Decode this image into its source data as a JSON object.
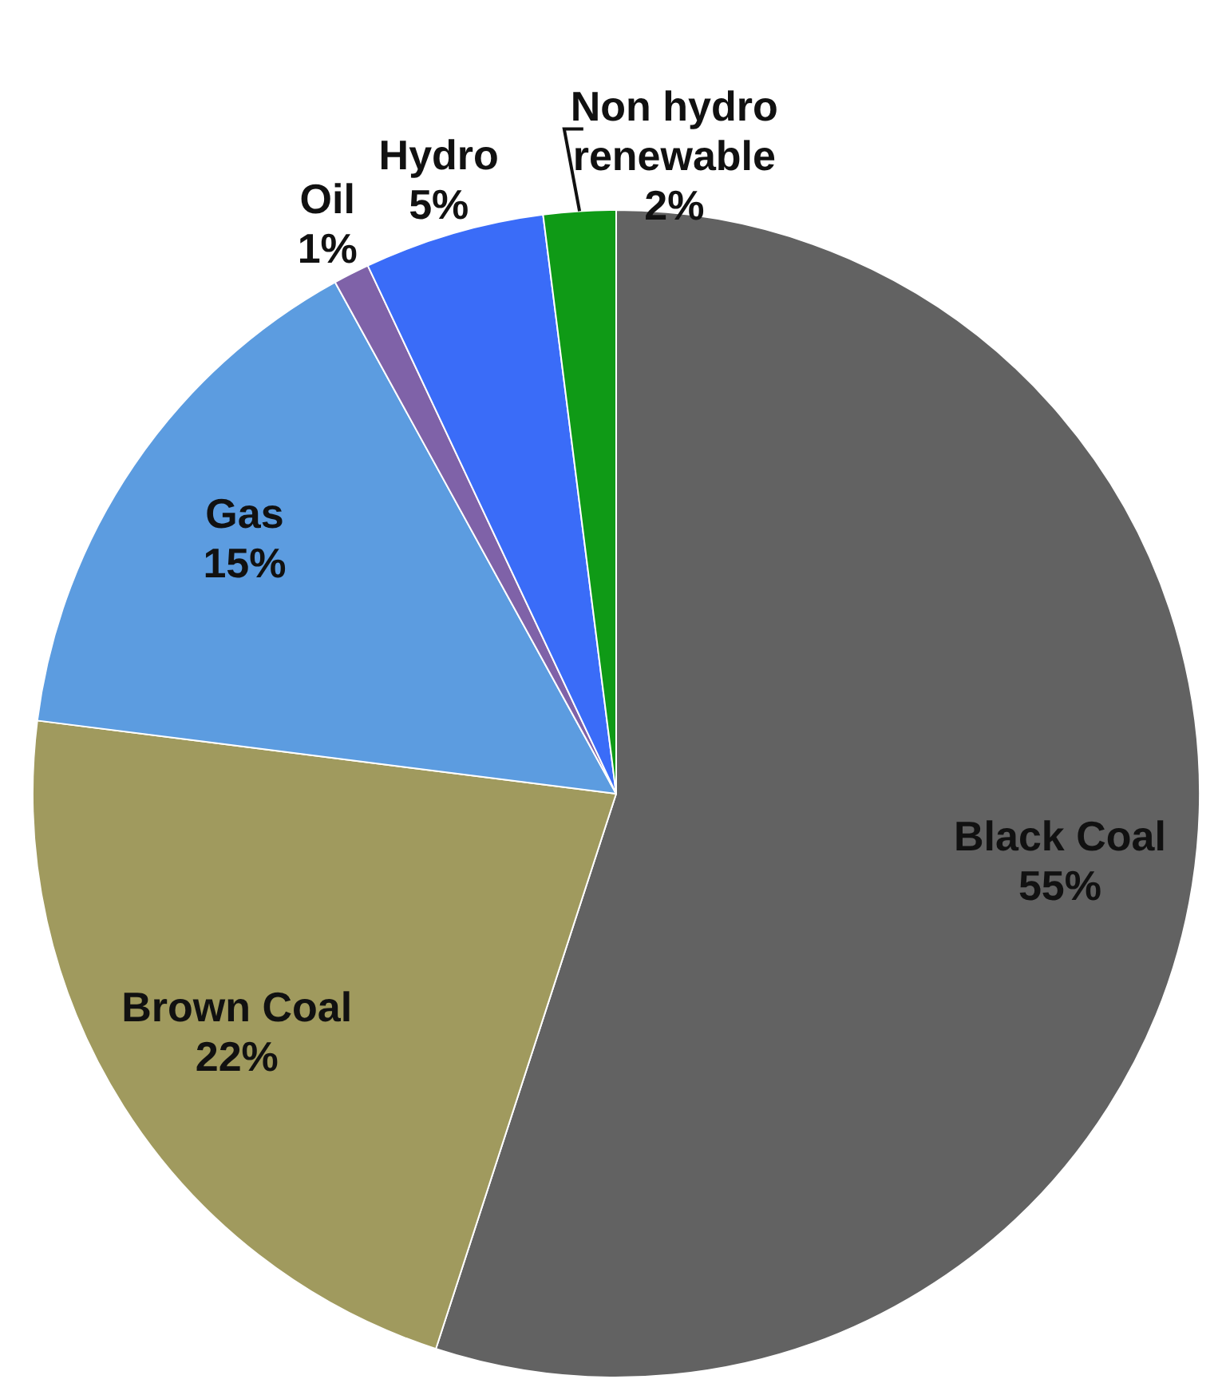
{
  "chart_data": {
    "type": "pie",
    "categories": [
      "Black Coal",
      "Brown Coal",
      "Gas",
      "Oil",
      "Hydro",
      "Non hydro renewable"
    ],
    "values": [
      55,
      22,
      15,
      1,
      5,
      2
    ],
    "value_labels": [
      "55%",
      "22%",
      "15%",
      "1%",
      "5%",
      "2%"
    ],
    "colors": [
      "#626262",
      "#a09a5e",
      "#5c9ce0",
      "#7f62a8",
      "#3a6cf8",
      "#0f9a16"
    ],
    "legend": false
  }
}
